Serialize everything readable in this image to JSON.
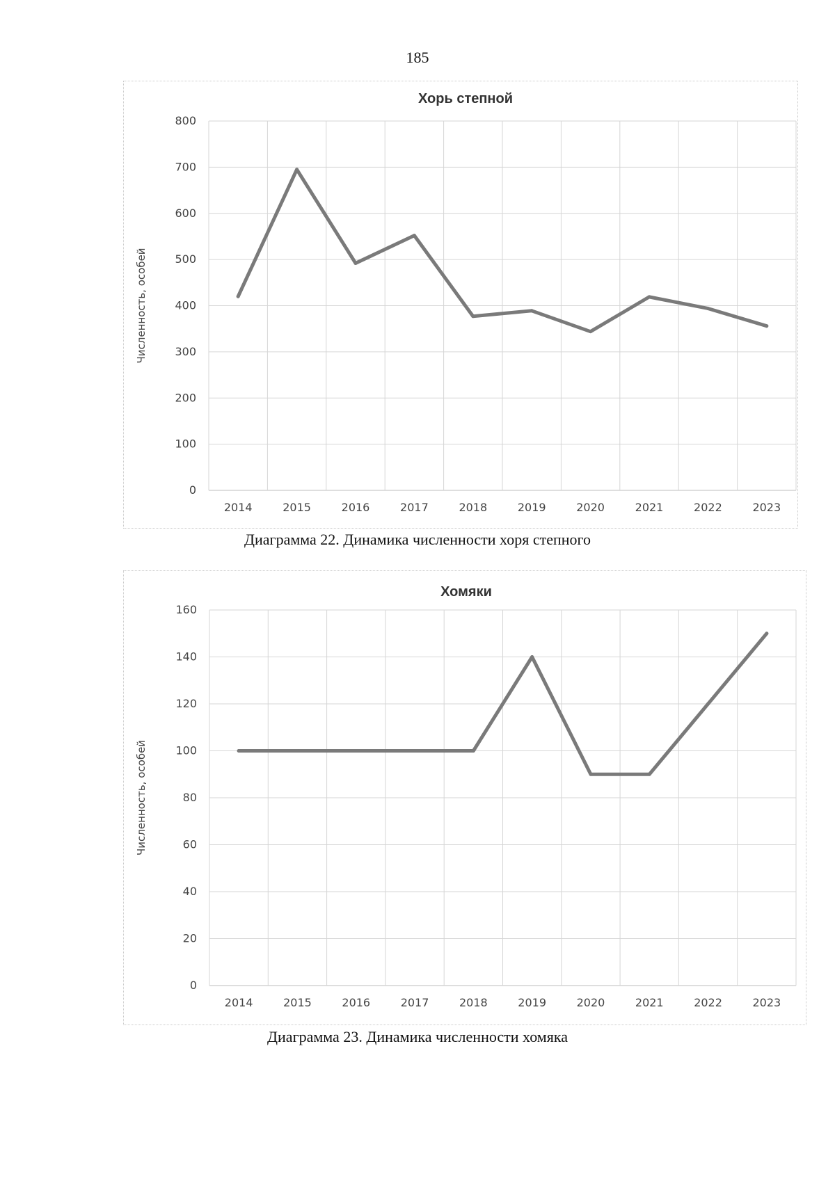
{
  "page": {
    "number": "185"
  },
  "chart_data": [
    {
      "type": "line",
      "title": "Хорь степной",
      "xlabel": "",
      "ylabel": "Численность, особей",
      "categories": [
        "2014",
        "2015",
        "2016",
        "2017",
        "2018",
        "2019",
        "2020",
        "2021",
        "2022",
        "2023"
      ],
      "values": [
        420,
        695,
        492,
        552,
        377,
        389,
        344,
        419,
        394,
        356
      ],
      "ylim": [
        0,
        800
      ],
      "yticks": [
        "0",
        "100",
        "200",
        "300",
        "400",
        "500",
        "600",
        "700",
        "800"
      ],
      "grid": true,
      "caption": "Диаграмма 22. Динамика численности хоря степного",
      "line_color": "#7a7a7a"
    },
    {
      "type": "line",
      "title": "Хомяки",
      "xlabel": "",
      "ylabel": "Численность, особей",
      "categories": [
        "2014",
        "2015",
        "2016",
        "2017",
        "2018",
        "2019",
        "2020",
        "2021",
        "2022",
        "2023"
      ],
      "values": [
        100,
        100,
        100,
        100,
        100,
        140,
        90,
        90,
        120,
        150
      ],
      "ylim": [
        0,
        160
      ],
      "yticks": [
        "0",
        "20",
        "40",
        "60",
        "80",
        "100",
        "120",
        "140",
        "160"
      ],
      "grid": true,
      "caption": "Диаграмма 23. Динамика численности хомяка",
      "line_color": "#7a7a7a"
    }
  ]
}
